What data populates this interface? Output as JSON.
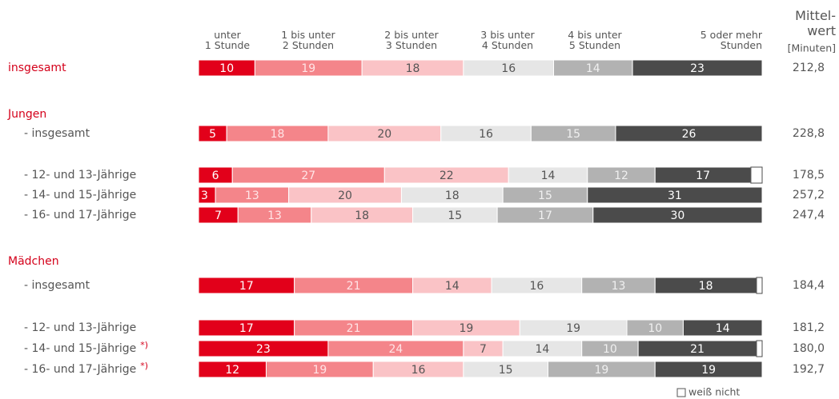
{
  "chart_data": {
    "type": "stacked-bar-horizontal",
    "categories": [
      "insgesamt",
      "Jungen",
      "- insgesamt",
      "- 12- und 13-Jährige",
      "- 14- und 15-Jährige",
      "- 16- und 17-Jährige",
      "Mädchen",
      "- insgesamt",
      "- 12- und 13-Jährige",
      "- 14- und 15-Jährige",
      "- 16- und 17-Jährige"
    ],
    "category_colors": [
      "#d4001a",
      "#d4001a",
      "#555555",
      "#555555",
      "#555555",
      "#555555",
      "#d4001a",
      "#555555",
      "#555555",
      "#555555",
      "#555555"
    ],
    "notes": [
      null,
      null,
      null,
      null,
      null,
      null,
      null,
      null,
      null,
      "*)",
      "*)"
    ],
    "note_color": "#d4001a",
    "xlim": [
      0,
      100
    ],
    "series": [
      {
        "name": "unter\n1 Stunde",
        "color": "#e2001a",
        "label_color": "#ffffff",
        "values": [
          10,
          null,
          5,
          6,
          3,
          7,
          null,
          17,
          17,
          23,
          12
        ]
      },
      {
        "name": "1 bis unter\n2 Stunden",
        "color": "#f4858a",
        "label_color": "#ffe4e6",
        "values": [
          19,
          null,
          18,
          27,
          13,
          13,
          null,
          21,
          21,
          24,
          19
        ]
      },
      {
        "name": "2 bis unter\n3 Stunden",
        "color": "#fac3c6",
        "label_color": "#555555",
        "values": [
          18,
          null,
          20,
          22,
          20,
          18,
          null,
          14,
          19,
          7,
          16
        ]
      },
      {
        "name": "3 bis unter\n4 Stunden",
        "color": "#e6e6e6",
        "label_color": "#555555",
        "values": [
          16,
          null,
          16,
          14,
          18,
          15,
          null,
          16,
          19,
          14,
          15
        ]
      },
      {
        "name": "4 bis unter\n5 Stunden",
        "color": "#b2b2b2",
        "label_color": "#f0f0f0",
        "values": [
          14,
          null,
          15,
          12,
          15,
          17,
          null,
          13,
          10,
          10,
          19
        ]
      },
      {
        "name": "5 oder mehr\nStunden",
        "color": "#4b4b4b",
        "label_color": "#ffffff",
        "values": [
          23,
          null,
          26,
          17,
          31,
          30,
          null,
          18,
          14,
          21,
          19
        ]
      },
      {
        "name": "weiß nicht",
        "color": "#ffffff",
        "values": [
          null,
          null,
          null,
          2,
          null,
          null,
          null,
          1,
          null,
          1,
          null
        ]
      }
    ],
    "mean_header": "Mittel-\nwert",
    "mean_unit": "[Minuten]",
    "mean_labels": [
      "212,8",
      null,
      "228,8",
      "178,5",
      "257,2",
      "247,4",
      null,
      "184,4",
      "181,2",
      "180,0",
      "192,7"
    ]
  }
}
